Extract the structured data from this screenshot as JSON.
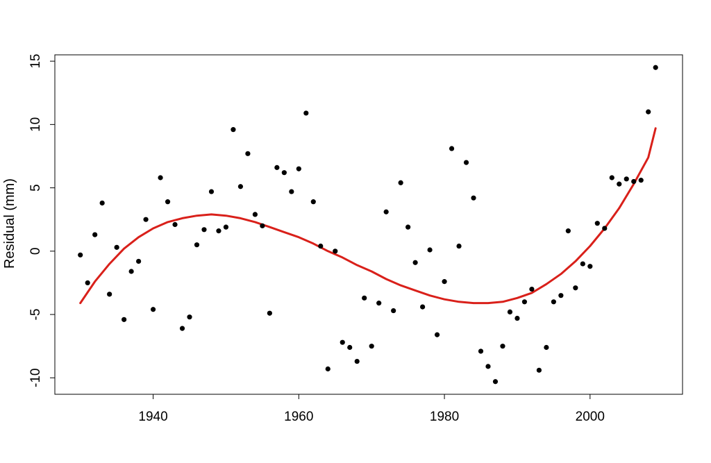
{
  "chart_data": {
    "type": "scatter",
    "title": "",
    "xlabel": "",
    "ylabel": "Residual (mm)",
    "xlim": [
      1926.5,
      2012.7
    ],
    "ylim": [
      -11.3,
      15.5
    ],
    "x_ticks": [
      1940,
      1960,
      1980,
      2000
    ],
    "y_ticks": [
      -10,
      -5,
      0,
      5,
      10,
      15
    ],
    "grid": false,
    "legend": "none",
    "point_color": "#000000",
    "fit_color": "#d9201a",
    "points": [
      [
        1930,
        -0.3
      ],
      [
        1931,
        -2.5
      ],
      [
        1932,
        1.3
      ],
      [
        1933,
        3.8
      ],
      [
        1934,
        -3.4
      ],
      [
        1935,
        0.3
      ],
      [
        1936,
        -5.4
      ],
      [
        1937,
        -1.6
      ],
      [
        1938,
        -0.8
      ],
      [
        1939,
        2.5
      ],
      [
        1940,
        -4.6
      ],
      [
        1941,
        5.8
      ],
      [
        1942,
        3.9
      ],
      [
        1943,
        2.1
      ],
      [
        1944,
        -6.1
      ],
      [
        1945,
        -5.2
      ],
      [
        1946,
        0.5
      ],
      [
        1947,
        1.7
      ],
      [
        1948,
        4.7
      ],
      [
        1949,
        1.6
      ],
      [
        1950,
        1.9
      ],
      [
        1951,
        9.6
      ],
      [
        1952,
        5.1
      ],
      [
        1953,
        7.7
      ],
      [
        1954,
        2.9
      ],
      [
        1955,
        2.0
      ],
      [
        1956,
        -4.9
      ],
      [
        1957,
        6.6
      ],
      [
        1958,
        6.2
      ],
      [
        1959,
        4.7
      ],
      [
        1960,
        6.5
      ],
      [
        1961,
        10.9
      ],
      [
        1962,
        3.9
      ],
      [
        1963,
        0.4
      ],
      [
        1964,
        -9.3
      ],
      [
        1965,
        0.0
      ],
      [
        1966,
        -7.2
      ],
      [
        1967,
        -7.6
      ],
      [
        1968,
        -8.7
      ],
      [
        1969,
        -3.7
      ],
      [
        1970,
        -7.5
      ],
      [
        1971,
        -4.1
      ],
      [
        1972,
        3.1
      ],
      [
        1973,
        -4.7
      ],
      [
        1974,
        5.4
      ],
      [
        1975,
        1.9
      ],
      [
        1976,
        -0.9
      ],
      [
        1977,
        -4.4
      ],
      [
        1978,
        0.1
      ],
      [
        1979,
        -6.6
      ],
      [
        1980,
        -2.4
      ],
      [
        1981,
        8.1
      ],
      [
        1982,
        0.4
      ],
      [
        1983,
        7.0
      ],
      [
        1984,
        4.2
      ],
      [
        1985,
        -7.9
      ],
      [
        1986,
        -9.1
      ],
      [
        1987,
        -10.3
      ],
      [
        1988,
        -7.5
      ],
      [
        1989,
        -4.8
      ],
      [
        1990,
        -5.3
      ],
      [
        1991,
        -4.0
      ],
      [
        1992,
        -3.0
      ],
      [
        1993,
        -9.4
      ],
      [
        1994,
        -7.6
      ],
      [
        1995,
        -4.0
      ],
      [
        1996,
        -3.5
      ],
      [
        1997,
        1.6
      ],
      [
        1998,
        -2.9
      ],
      [
        1999,
        -1.0
      ],
      [
        2000,
        -1.2
      ],
      [
        2001,
        2.2
      ],
      [
        2002,
        1.8
      ],
      [
        2003,
        5.8
      ],
      [
        2004,
        5.3
      ],
      [
        2005,
        5.7
      ],
      [
        2006,
        5.5
      ],
      [
        2007,
        5.6
      ],
      [
        2008,
        11.0
      ],
      [
        2009,
        14.5
      ]
    ],
    "fit_curve": [
      [
        1930,
        -4.1
      ],
      [
        1932,
        -2.4
      ],
      [
        1934,
        -1.0
      ],
      [
        1936,
        0.2
      ],
      [
        1938,
        1.1
      ],
      [
        1940,
        1.8
      ],
      [
        1942,
        2.3
      ],
      [
        1944,
        2.6
      ],
      [
        1946,
        2.8
      ],
      [
        1948,
        2.9
      ],
      [
        1950,
        2.8
      ],
      [
        1952,
        2.6
      ],
      [
        1954,
        2.3
      ],
      [
        1956,
        1.9
      ],
      [
        1958,
        1.5
      ],
      [
        1960,
        1.1
      ],
      [
        1962,
        0.6
      ],
      [
        1964,
        0.0
      ],
      [
        1966,
        -0.5
      ],
      [
        1968,
        -1.1
      ],
      [
        1970,
        -1.6
      ],
      [
        1972,
        -2.2
      ],
      [
        1974,
        -2.7
      ],
      [
        1976,
        -3.1
      ],
      [
        1978,
        -3.5
      ],
      [
        1980,
        -3.8
      ],
      [
        1982,
        -4.0
      ],
      [
        1984,
        -4.1
      ],
      [
        1986,
        -4.1
      ],
      [
        1988,
        -4.0
      ],
      [
        1990,
        -3.7
      ],
      [
        1992,
        -3.3
      ],
      [
        1994,
        -2.6
      ],
      [
        1996,
        -1.8
      ],
      [
        1998,
        -0.8
      ],
      [
        2000,
        0.4
      ],
      [
        2002,
        1.8
      ],
      [
        2004,
        3.4
      ],
      [
        2006,
        5.3
      ],
      [
        2008,
        7.4
      ],
      [
        2009,
        9.7
      ]
    ]
  }
}
